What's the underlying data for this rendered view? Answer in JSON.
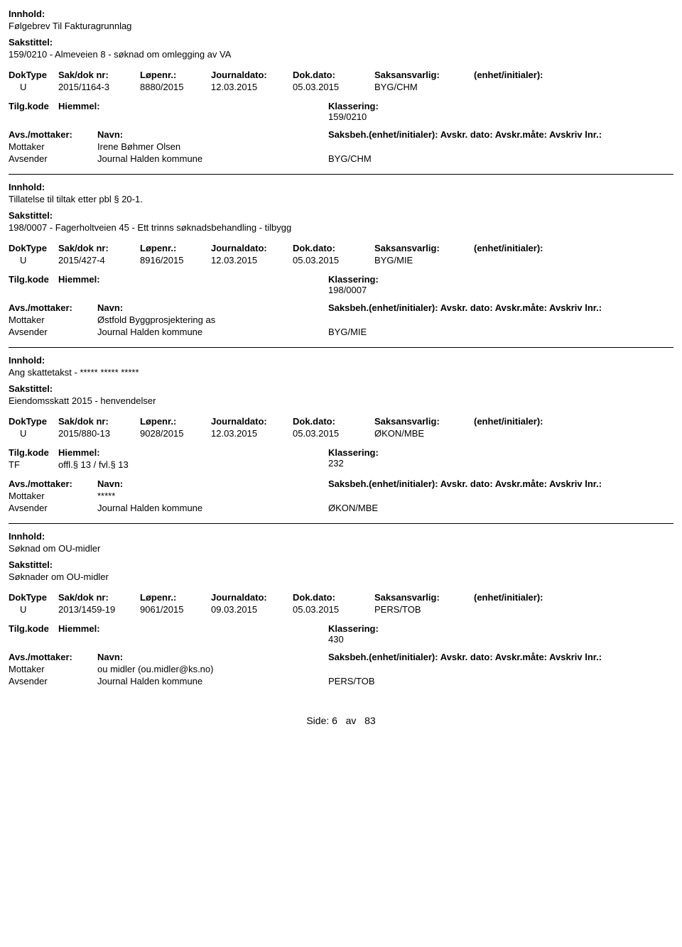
{
  "labels": {
    "innhold": "Innhold:",
    "sakstittel": "Sakstittel:",
    "doktype": "DokType",
    "saknr": "Sak/dok nr:",
    "lopennr": "Løpenr.:",
    "journaldato": "Journaldato:",
    "dokdato": "Dok.dato:",
    "saksansvarlig": "Saksansvarlig:",
    "enhet": "(enhet/initialer):",
    "tilgkode": "Tilg.kode",
    "hjemmel": "Hiemmel:",
    "klassering": "Klassering:",
    "avs_mottaker": "Avs./mottaker:",
    "navn": "Navn:",
    "saksbeh_line": "Saksbeh.(enhet/initialer): Avskr. dato:  Avskr.måte:  Avskriv lnr.:"
  },
  "entries": [
    {
      "innhold": "Følgebrev Til Fakturagrunnlag",
      "sakstittel": "159/0210 - Almeveien 8 - søknad om omlegging av VA",
      "doktype": "U",
      "saknr": "2015/1164-3",
      "lopennr": "8880/2015",
      "journaldato": "12.03.2015",
      "dokdato": "05.03.2015",
      "saksansvarlig": "BYG/CHM",
      "tilgkode": "",
      "hjemmel": "",
      "klassering": "159/0210",
      "parties": [
        {
          "role": "Mottaker",
          "navn": "Irene Bøhmer Olsen",
          "saksbeh": ""
        },
        {
          "role": "Avsender",
          "navn": "Journal Halden kommune",
          "saksbeh": "BYG/CHM"
        }
      ]
    },
    {
      "innhold": "Tillatelse til tiltak etter pbl § 20-1.",
      "sakstittel": "198/0007 - Fagerholtveien 45 - Ett trinns søknadsbehandling - tilbygg",
      "doktype": "U",
      "saknr": "2015/427-4",
      "lopennr": "8916/2015",
      "journaldato": "12.03.2015",
      "dokdato": "05.03.2015",
      "saksansvarlig": "BYG/MIE",
      "tilgkode": "",
      "hjemmel": "",
      "klassering": "198/0007",
      "parties": [
        {
          "role": "Mottaker",
          "navn": "Østfold Byggprosjektering as",
          "saksbeh": ""
        },
        {
          "role": "Avsender",
          "navn": "Journal Halden kommune",
          "saksbeh": "BYG/MIE"
        }
      ]
    },
    {
      "innhold": "Ang skattetakst - ***** ***** *****",
      "sakstittel": "Eiendomsskatt 2015 - henvendelser",
      "doktype": "U",
      "saknr": "2015/880-13",
      "lopennr": "9028/2015",
      "journaldato": "12.03.2015",
      "dokdato": "05.03.2015",
      "saksansvarlig": "ØKON/MBE",
      "tilgkode": "TF",
      "hjemmel": "offl.§ 13 / fvl.§ 13",
      "klassering": "232",
      "parties": [
        {
          "role": "Mottaker",
          "navn": "*****",
          "saksbeh": ""
        },
        {
          "role": "Avsender",
          "navn": "Journal Halden kommune",
          "saksbeh": "ØKON/MBE"
        }
      ]
    },
    {
      "innhold": "Søknad om OU-midler",
      "sakstittel": "Søknader om OU-midler",
      "doktype": "U",
      "saknr": "2013/1459-19",
      "lopennr": "9061/2015",
      "journaldato": "09.03.2015",
      "dokdato": "05.03.2015",
      "saksansvarlig": "PERS/TOB",
      "tilgkode": "",
      "hjemmel": "",
      "klassering": "430",
      "parties": [
        {
          "role": "Mottaker",
          "navn": "ou midler (ou.midler@ks.no)",
          "saksbeh": ""
        },
        {
          "role": "Avsender",
          "navn": "Journal Halden kommune",
          "saksbeh": "PERS/TOB"
        }
      ]
    }
  ],
  "footer": {
    "side": "Side:",
    "page": "6",
    "of": "av",
    "total": "83"
  }
}
